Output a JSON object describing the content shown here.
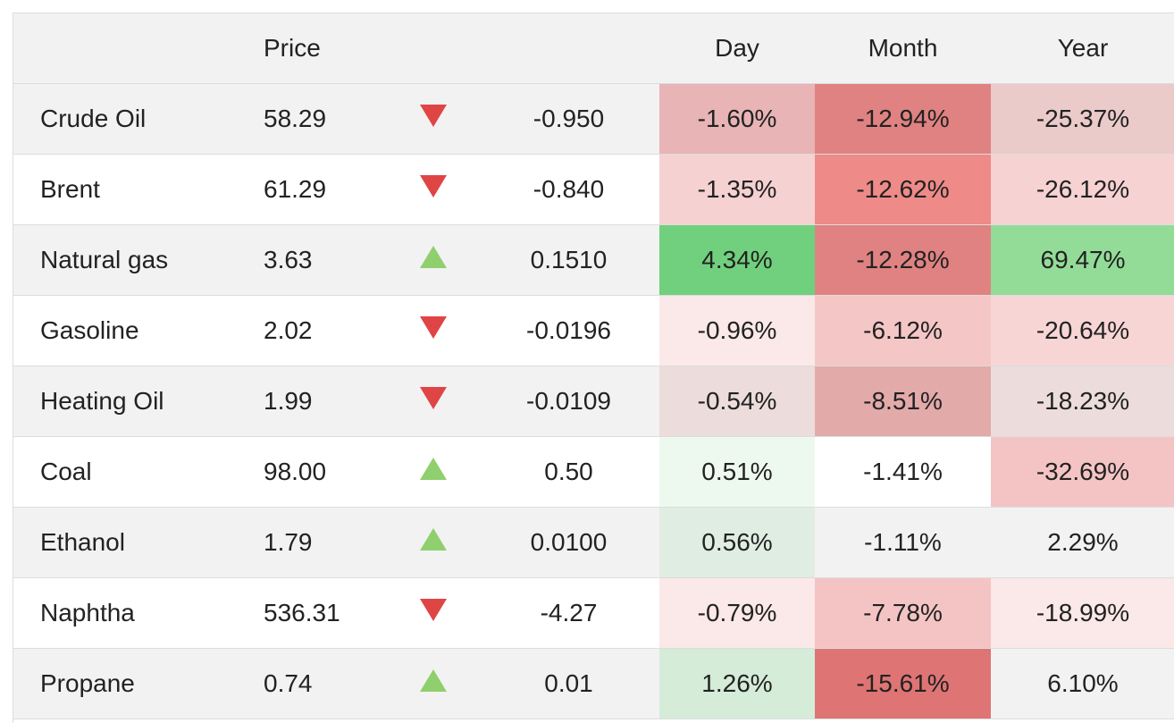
{
  "headers": {
    "name": "",
    "price": "Price",
    "direction": "",
    "change": "",
    "day": "Day",
    "month": "Month",
    "year": "Year"
  },
  "rows": [
    {
      "name": "Crude Oil",
      "price": "58.29",
      "direction": "down",
      "change": "-0.950",
      "day": "-1.60%",
      "month": "-12.94%",
      "year": "-25.37%",
      "day_bg": "#e8b4b6",
      "month_bg": "#e08282",
      "year_bg": "#ebcaca"
    },
    {
      "name": "Brent",
      "price": "61.29",
      "direction": "down",
      "change": "-0.840",
      "day": "-1.35%",
      "month": "-12.62%",
      "year": "-26.12%",
      "day_bg": "#f6d1d1",
      "month_bg": "#ee8a88",
      "year_bg": "#f7d2d2"
    },
    {
      "name": "Natural gas",
      "price": "3.63",
      "direction": "up",
      "change": "0.1510",
      "day": "4.34%",
      "month": "-12.28%",
      "year": "69.47%",
      "day_bg": "#71d07d",
      "month_bg": "#e08282",
      "year_bg": "#93dc98"
    },
    {
      "name": "Gasoline",
      "price": "2.02",
      "direction": "down",
      "change": "-0.0196",
      "day": "-0.96%",
      "month": "-6.12%",
      "year": "-20.64%",
      "day_bg": "#fbe8e8",
      "month_bg": "#f4c6c6",
      "year_bg": "#f8d5d5"
    },
    {
      "name": "Heating Oil",
      "price": "1.99",
      "direction": "down",
      "change": "-0.0109",
      "day": "-0.54%",
      "month": "-8.51%",
      "year": "-18.23%",
      "day_bg": "#ecdcdc",
      "month_bg": "#e3aaaa",
      "year_bg": "#ecdcdc"
    },
    {
      "name": "Coal",
      "price": "98.00",
      "direction": "up",
      "change": "0.50",
      "day": "0.51%",
      "month": "-1.41%",
      "year": "-32.69%",
      "day_bg": "#edf9ef",
      "month_bg": "#ffffff",
      "year_bg": "#f4c4c4"
    },
    {
      "name": "Ethanol",
      "price": "1.79",
      "direction": "up",
      "change": "0.0100",
      "day": "0.56%",
      "month": "-1.11%",
      "year": "2.29%",
      "day_bg": "#e0ede3",
      "month_bg": "#f2f2f2",
      "year_bg": "#f2f2f2"
    },
    {
      "name": "Naphtha",
      "price": "536.31",
      "direction": "down",
      "change": "-4.27",
      "day": "-0.79%",
      "month": "-7.78%",
      "year": "-18.99%",
      "day_bg": "#fbe8e8",
      "month_bg": "#f4c4c4",
      "year_bg": "#fbe8e8"
    },
    {
      "name": "Propane",
      "price": "0.74",
      "direction": "up",
      "change": "0.01",
      "day": "1.26%",
      "month": "-15.61%",
      "year": "6.10%",
      "day_bg": "#d4ecd8",
      "month_bg": "#df7474",
      "year_bg": "#f2f2f2"
    }
  ],
  "colors": {
    "down_arrow": "#e04545",
    "up_arrow": "#8fcf6e",
    "stripe": "#f2f2f2",
    "border": "#dddddd"
  }
}
